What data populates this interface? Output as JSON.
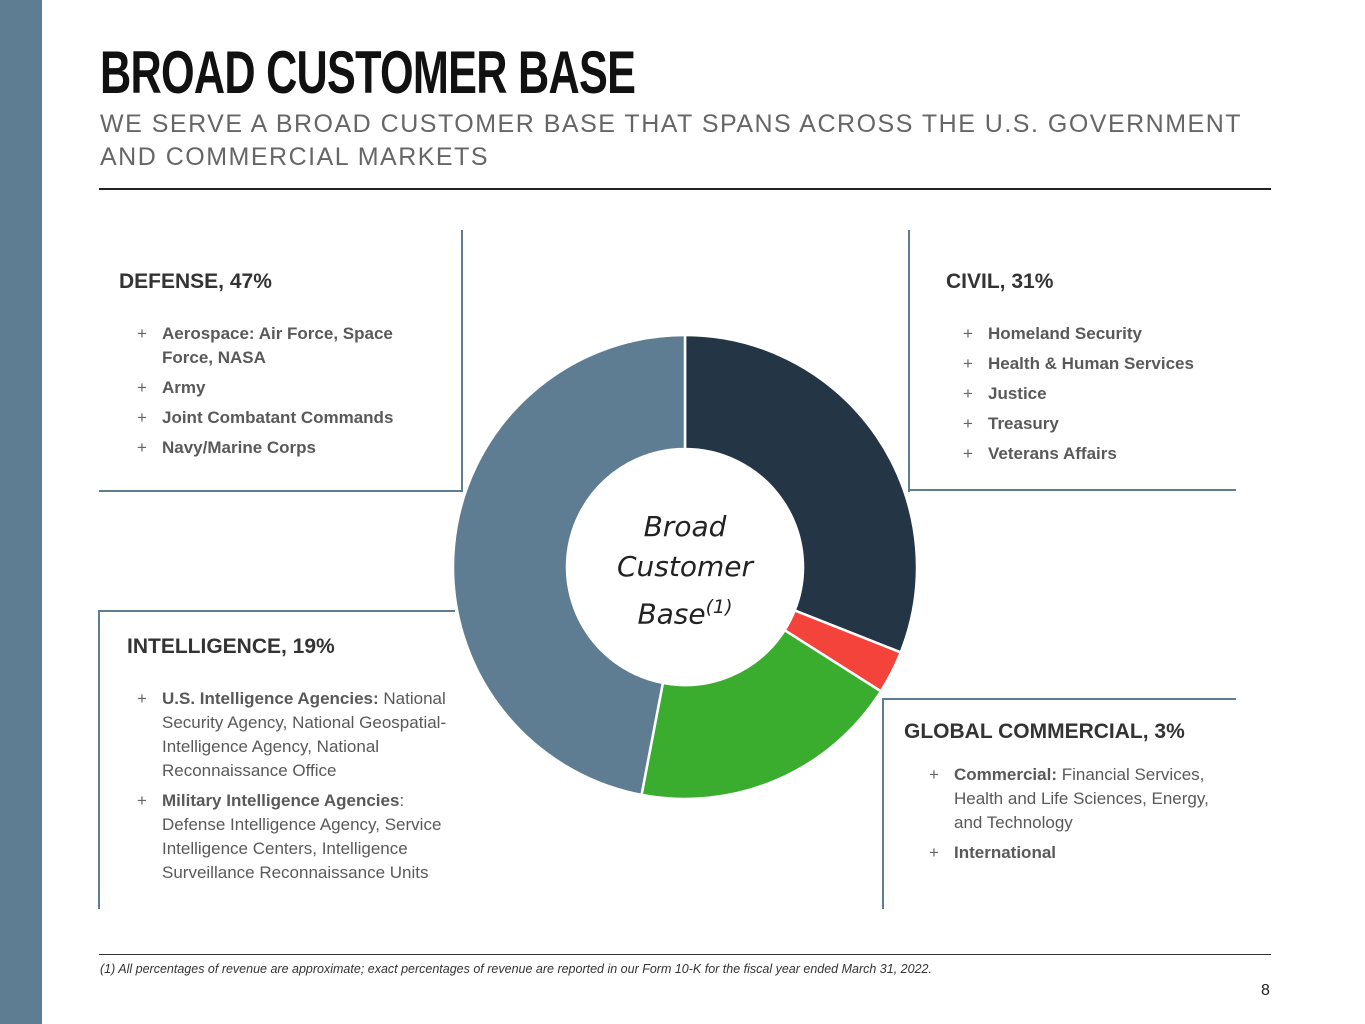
{
  "slide": {
    "title": "BROAD CUSTOMER BASE",
    "subtitle": "WE SERVE A BROAD CUSTOMER BASE THAT SPANS ACROSS THE U.S. GOVERNMENT AND COMMERCIAL MARKETS",
    "center_label": "Broad Customer Base",
    "center_note": "(1)",
    "footnote": "(1)  All percentages of revenue are approximate; exact percentages of revenue are reported in our Form 10-K for the fiscal year ended March 31, 2022.",
    "page": "8"
  },
  "chart_data": {
    "type": "donut",
    "categories": [
      "CIVIL, 31%",
      "GLOBAL COMMERCIAL, 3%",
      "INTELLIGENCE, 19%",
      "DEFENSE, 47%"
    ],
    "values": [
      31,
      3,
      19,
      47
    ],
    "colors": [
      "#243546",
      "#f4433b",
      "#3aad2e",
      "#5e7d93"
    ]
  },
  "panels": [
    {
      "items": [
        {
          "strong": "Homeland Security"
        },
        {
          "strong": "Health & Human Services"
        },
        {
          "strong": "Justice"
        },
        {
          "strong": "Treasury"
        },
        {
          "strong": "Veterans Affairs"
        }
      ]
    },
    {
      "items": [
        {
          "strong": "Commercial:",
          "text": " Financial Services, Health and Life Sciences, Energy, and Technology"
        },
        {
          "strong": "International"
        }
      ]
    },
    {
      "items": [
        {
          "strong": "U.S. Intelligence Agencies:",
          "text": " National Security Agency, National Geospatial-Intelligence Agency, National Reconnaissance Office"
        },
        {
          "strong": "Military Intelligence Agencies",
          "text": ": Defense Intelligence Agency, Service Intelligence Centers, Intelligence Surveillance Reconnaissance Units"
        }
      ]
    },
    {
      "items": [
        {
          "strong": "Aerospace: Air Force, Space Force, NASA"
        },
        {
          "strong": "Army"
        },
        {
          "strong": "Joint Combatant Commands"
        },
        {
          "strong": "Navy/Marine Corps"
        }
      ]
    }
  ]
}
